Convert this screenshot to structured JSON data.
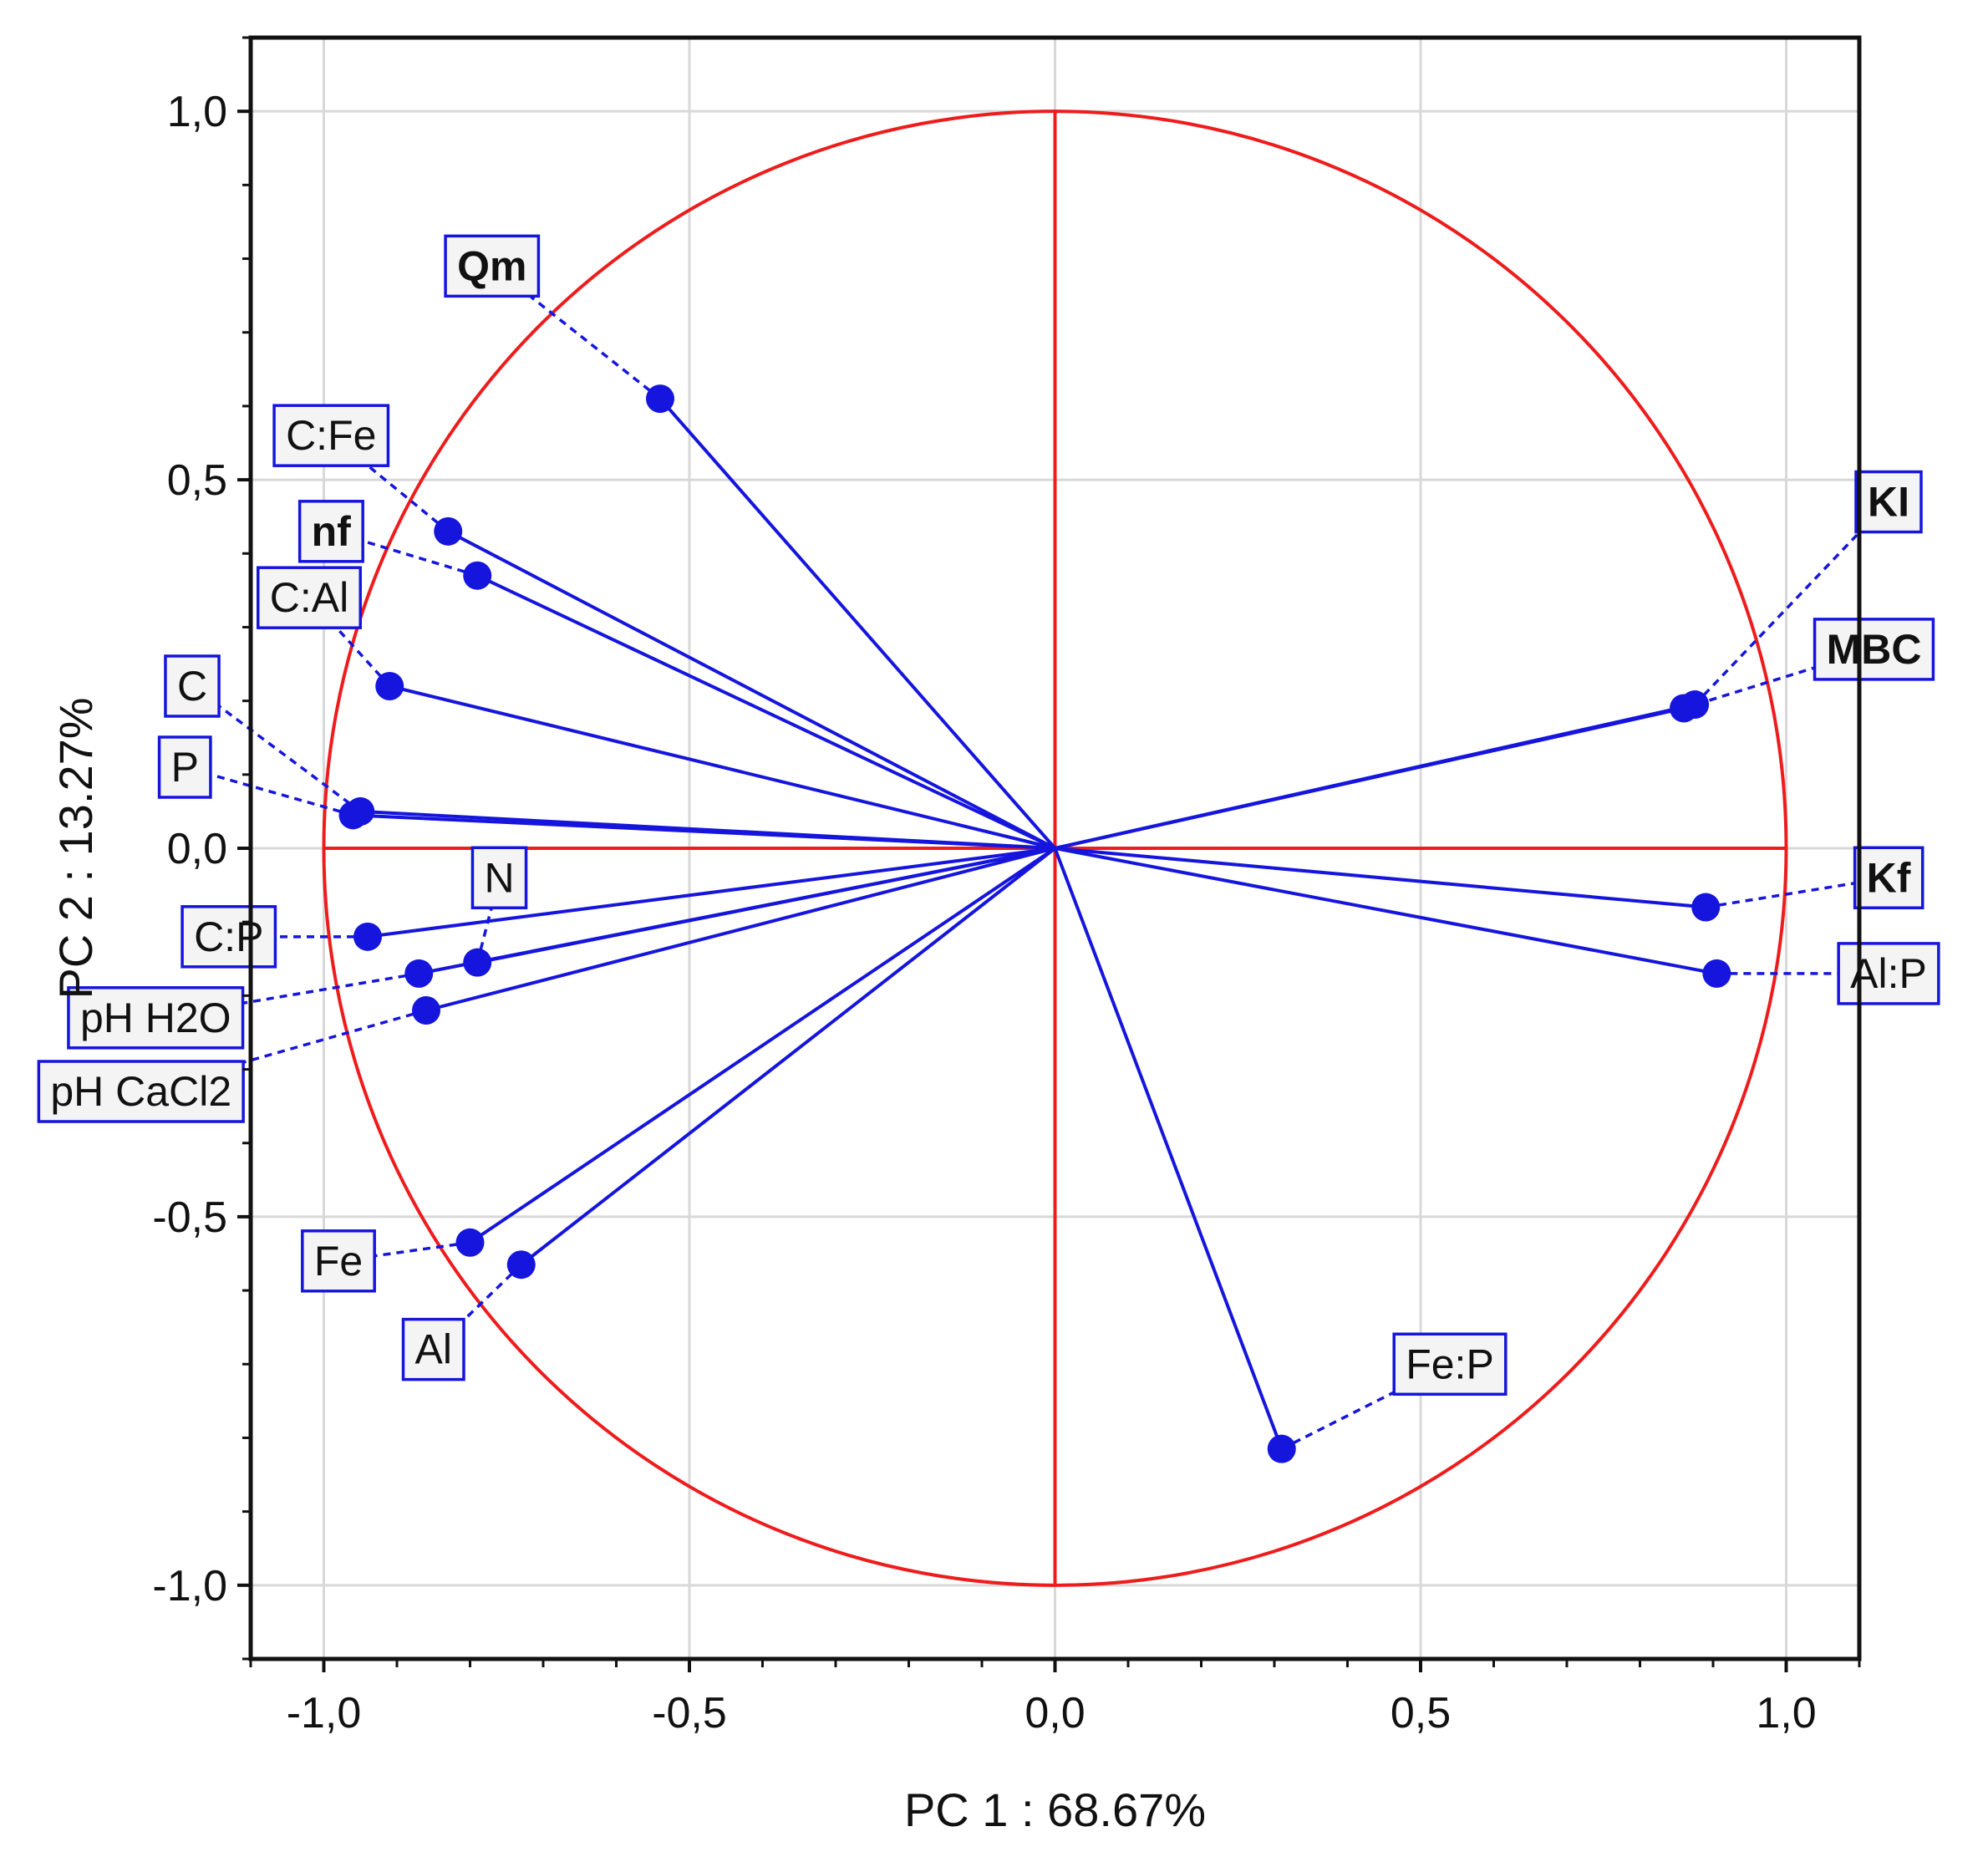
{
  "chart_data": {
    "type": "scatter",
    "subtype": "pca-correlation-circle",
    "title": "",
    "xlabel": "PC 1 : 68.67%",
    "ylabel": "PC 2 : 13.27%",
    "xlim": [
      -1.1,
      1.1
    ],
    "ylim": [
      -1.1,
      1.1
    ],
    "xticks": [
      -1.0,
      -0.5,
      0.0,
      0.5,
      1.0
    ],
    "yticks": [
      -1.0,
      -0.5,
      0.0,
      0.5,
      1.0
    ],
    "xtick_labels": [
      "-1,0",
      "-0,5",
      "0,0",
      "0,5",
      "1,0"
    ],
    "ytick_labels": [
      "-1,0",
      "-0,5",
      "0,0",
      "0,5",
      "1,0"
    ],
    "grid": true,
    "unit_circle_radius": 1.0,
    "colors": {
      "circle": "#ee1c1c",
      "vector": "#1515dd",
      "grid": "#d8d8d8",
      "label_border": "#1515dd",
      "label_bg": "#f4f4f4"
    },
    "variables": [
      {
        "name": "Qm",
        "x": -0.54,
        "y": 0.61,
        "bold": true,
        "label_x": -0.77,
        "label_y": 0.79
      },
      {
        "name": "C:Fe",
        "x": -0.83,
        "y": 0.43,
        "bold": false,
        "label_x": -0.99,
        "label_y": 0.56
      },
      {
        "name": "nf",
        "x": -0.79,
        "y": 0.37,
        "bold": true,
        "label_x": -0.99,
        "label_y": 0.43
      },
      {
        "name": "C:Al",
        "x": -0.91,
        "y": 0.22,
        "bold": false,
        "label_x": -1.02,
        "label_y": 0.34
      },
      {
        "name": "C",
        "x": -0.95,
        "y": 0.05,
        "bold": false,
        "label_x": -1.18,
        "label_y": 0.22
      },
      {
        "name": "P",
        "x": -0.96,
        "y": 0.045,
        "bold": false,
        "label_x": -1.19,
        "label_y": 0.11
      },
      {
        "name": "N",
        "x": -0.79,
        "y": -0.155,
        "bold": false,
        "label_x": -0.76,
        "label_y": -0.04
      },
      {
        "name": "C:P",
        "x": -0.94,
        "y": -0.12,
        "bold": false,
        "label_x": -1.13,
        "label_y": -0.12
      },
      {
        "name": "pH H2O",
        "x": -0.87,
        "y": -0.17,
        "bold": false,
        "label_x": -1.23,
        "label_y": -0.23
      },
      {
        "name": "pH CaCl2",
        "x": -0.86,
        "y": -0.22,
        "bold": false,
        "label_x": -1.25,
        "label_y": -0.33
      },
      {
        "name": "Fe",
        "x": -0.8,
        "y": -0.535,
        "bold": false,
        "label_x": -0.98,
        "label_y": -0.56
      },
      {
        "name": "Al",
        "x": -0.73,
        "y": -0.565,
        "bold": false,
        "label_x": -0.85,
        "label_y": -0.68
      },
      {
        "name": "KI",
        "x": 0.875,
        "y": 0.195,
        "bold": true,
        "label_x": 1.14,
        "label_y": 0.47
      },
      {
        "name": "MBC",
        "x": 0.86,
        "y": 0.19,
        "bold": true,
        "label_x": 1.12,
        "label_y": 0.27
      },
      {
        "name": "Kf",
        "x": 0.89,
        "y": -0.08,
        "bold": true,
        "label_x": 1.14,
        "label_y": -0.04
      },
      {
        "name": "Al:P",
        "x": 0.905,
        "y": -0.17,
        "bold": false,
        "label_x": 1.14,
        "label_y": -0.17
      },
      {
        "name": "Fe:P",
        "x": 0.31,
        "y": -0.815,
        "bold": false,
        "label_x": 0.54,
        "label_y": -0.7
      }
    ]
  }
}
